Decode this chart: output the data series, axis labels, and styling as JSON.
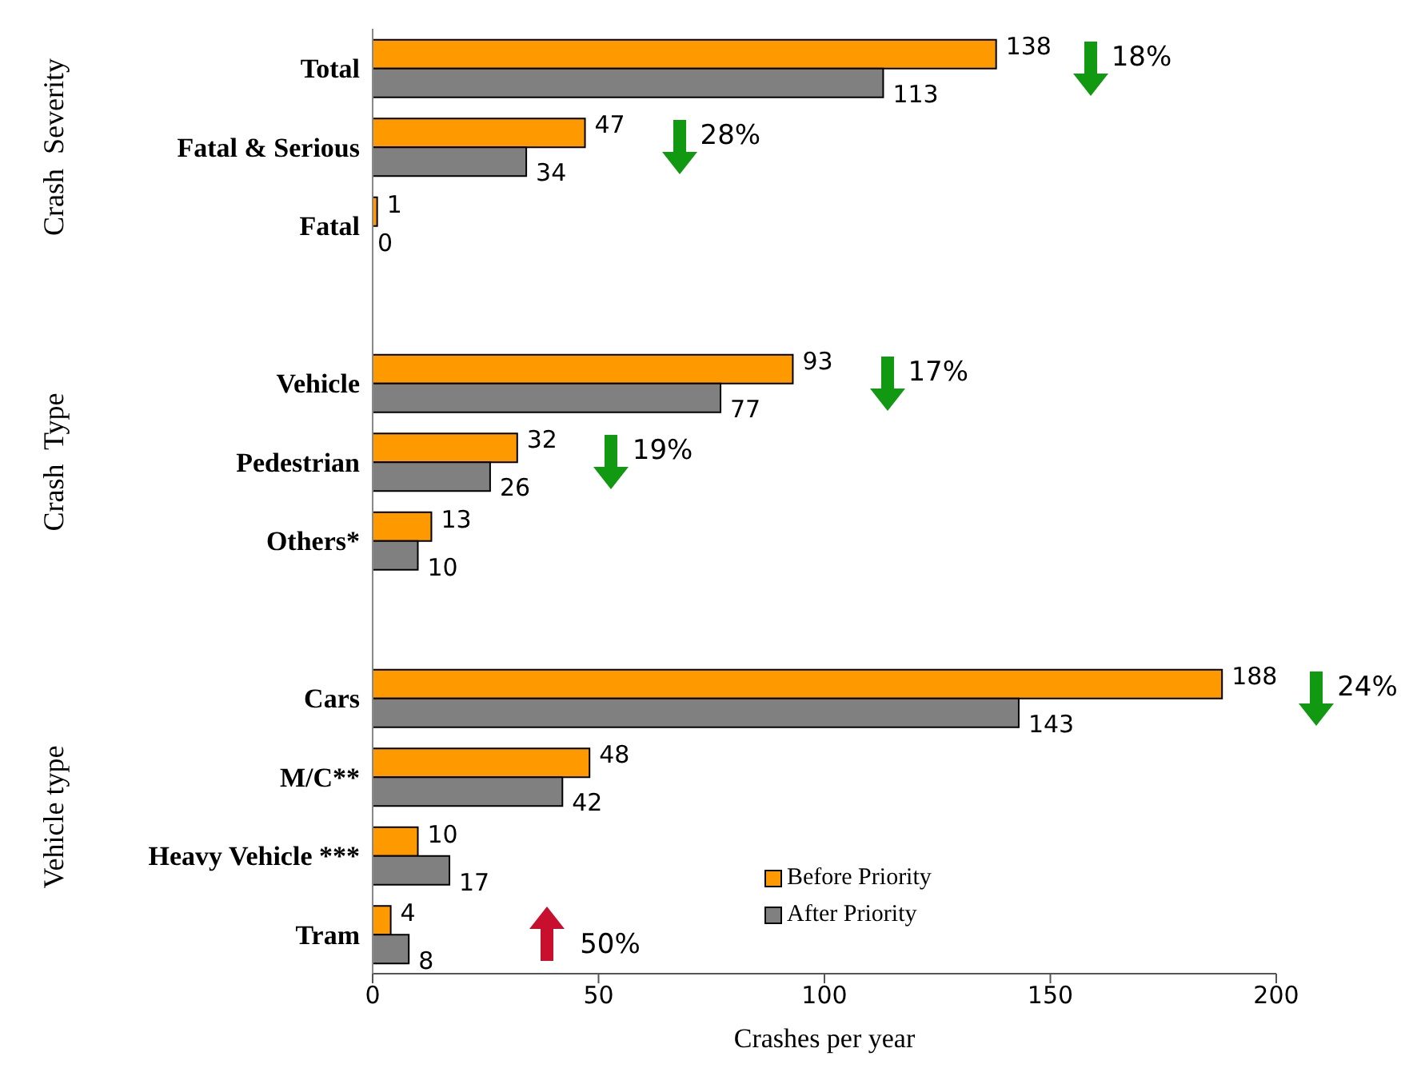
{
  "chart_data": {
    "type": "bar",
    "orientation": "horizontal",
    "xlabel": "Crashes per year",
    "categories": [
      "Total",
      "Fatal & Serious",
      "Fatal",
      null,
      "Vehicle",
      "Pedestrian",
      "Others*",
      null,
      "Cars",
      "M/C**",
      "Heavy Vehicle ***",
      "Tram"
    ],
    "series": [
      {
        "name": "Before Priority",
        "color": "#ff9900",
        "values": [
          138,
          47,
          1,
          null,
          93,
          32,
          13,
          null,
          188,
          48,
          10,
          4
        ]
      },
      {
        "name": "After Priority",
        "color": "#808080",
        "values": [
          113,
          34,
          0,
          null,
          77,
          26,
          10,
          null,
          143,
          42,
          17,
          8
        ]
      }
    ],
    "xlim": [
      0,
      200
    ],
    "xticks": [
      0,
      50,
      100,
      150,
      200
    ],
    "grid": false,
    "legend": "bottom right",
    "data_labels": true,
    "annotations": [
      "18%",
      "28%",
      "17%",
      "19%",
      "24%",
      "50%",
      "Crash  Severity",
      "Crash  Type",
      "Vehicle type"
    ]
  }
}
